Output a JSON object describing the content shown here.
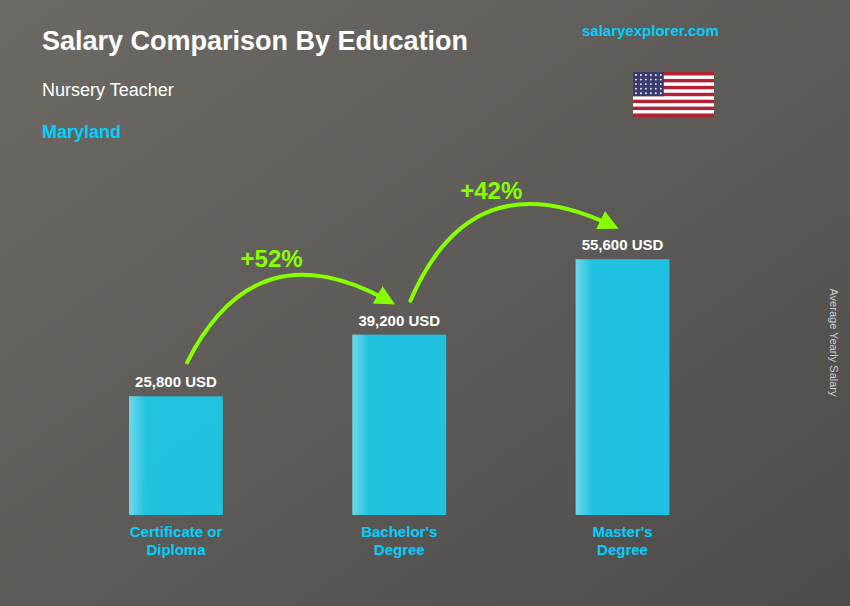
{
  "chart_data": {
    "type": "bar",
    "title": "Salary Comparison By Education",
    "subtitle": "Nursery Teacher",
    "ylabel": "Average Yearly Salary",
    "categories": [
      "Certificate or\nDiploma",
      "Bachelor's\nDegree",
      "Master's\nDegree"
    ],
    "values": [
      25800,
      39200,
      55600
    ],
    "value_labels": [
      "25,800 USD",
      "39,200 USD",
      "55,600 USD"
    ],
    "data_labels": true,
    "color": "#1ec8e8",
    "ylim": [
      0,
      75000
    ],
    "tick_labels": false,
    "grid": false,
    "annotations": {
      "location": "Maryland",
      "source": "salaryexplorer.com",
      "changes": [
        "+52%",
        "+42%"
      ]
    }
  }
}
